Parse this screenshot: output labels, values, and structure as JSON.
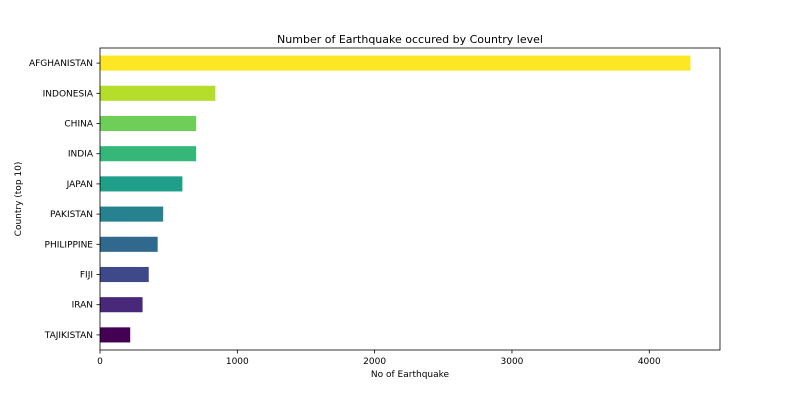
{
  "chart_data": {
    "type": "bar",
    "orientation": "horizontal",
    "title": "Number of Earthquake occured by Country level",
    "xlabel": "No of Earthquake",
    "ylabel": "Country (top 10)",
    "categories": [
      "AFGHANISTAN",
      "INDONESIA",
      "CHINA",
      "INDIA",
      "JAPAN",
      "PAKISTAN",
      "PHILIPPINE",
      "FIJI",
      "IRAN",
      "TAJIKISTAN"
    ],
    "values": [
      4300,
      840,
      700,
      700,
      600,
      460,
      420,
      355,
      310,
      220
    ],
    "colors": [
      "#fde725",
      "#b5de2b",
      "#6ece58",
      "#35b779",
      "#1f9e89",
      "#26828e",
      "#31688e",
      "#3e4989",
      "#482878",
      "#440154"
    ],
    "xlim": [
      0,
      4515
    ],
    "xticks": [
      0,
      1000,
      2000,
      3000,
      4000
    ],
    "grid": false,
    "legend": "none"
  }
}
